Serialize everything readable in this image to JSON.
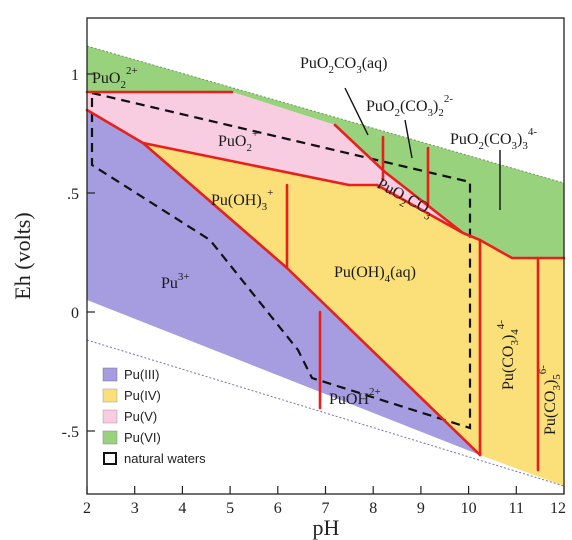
{
  "chart_data": {
    "type": "diagram",
    "x_axis": {
      "label": "pH",
      "range": [
        2,
        12
      ],
      "ticks": [
        "2",
        "3",
        "4",
        "5",
        "6",
        "7",
        "8",
        "9",
        "10",
        "11",
        "12"
      ]
    },
    "y_axis": {
      "label": "Eh (volts)",
      "range": [
        -0.75,
        1.28
      ],
      "ticks": [
        "1",
        ".5",
        "0",
        "-.5"
      ]
    },
    "legend": {
      "position": "bottom-left",
      "items": [
        {
          "label": "Pu(III)",
          "color": "#a69ce0"
        },
        {
          "label": "Pu(IV)",
          "color": "#fbe07a"
        },
        {
          "label": "Pu(V)",
          "color": "#f8cde2"
        },
        {
          "label": "Pu(VI)",
          "color": "#98d27c"
        },
        {
          "label": "natural waters",
          "color": "#000000"
        }
      ]
    },
    "species": [
      {
        "id": "puo2",
        "base": "PuO",
        "sub": "2",
        "sup": "2+"
      },
      {
        "id": "puo2p",
        "base": "PuO",
        "sub": "2",
        "sup": "+"
      },
      {
        "id": "puoh3",
        "base": "Pu(OH)",
        "sub": "3",
        "sup": "+"
      },
      {
        "id": "pu3",
        "base": "Pu",
        "sup": "3+"
      },
      {
        "id": "puoh4",
        "text": "Pu(OH)4(aq)"
      },
      {
        "id": "puoh2",
        "base": "PuOH",
        "sup": "2+"
      },
      {
        "id": "puo2co3aq",
        "text": "PuO2CO3(aq)"
      },
      {
        "id": "puo2co32",
        "text": "PuO2(CO3)2 2-"
      },
      {
        "id": "puo2co33",
        "text": "PuO2(CO3)3 4-"
      },
      {
        "id": "puo2co3",
        "text": "PuO2CO3"
      },
      {
        "id": "puco34",
        "text": "Pu(CO3)4 4-"
      },
      {
        "id": "puco35",
        "text": "Pu(CO3)5 6-"
      }
    ]
  }
}
